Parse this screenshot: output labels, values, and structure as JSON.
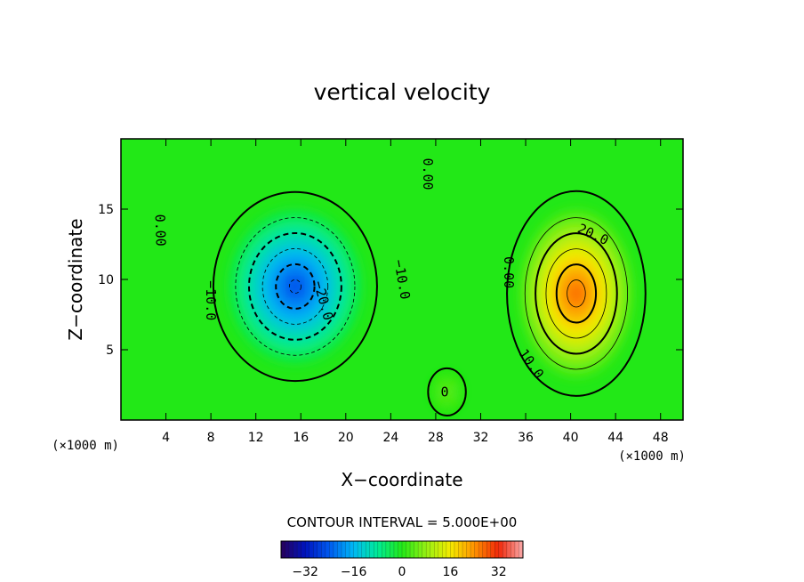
{
  "chart_data": {
    "type": "heatmap",
    "title": "vertical velocity",
    "xlabel": "X−coordinate",
    "ylabel": "Z−coordinate",
    "x_unit": "(×1000 m)",
    "z_unit": "(×1000 m)",
    "xlim": [
      0,
      50
    ],
    "ylim": [
      0,
      20
    ],
    "x_ticks": [
      4,
      8,
      12,
      16,
      20,
      24,
      28,
      32,
      36,
      40,
      44,
      48
    ],
    "x_tick_labels": [
      "4",
      "8",
      "12",
      "16",
      "20",
      "24",
      "28",
      "32",
      "36",
      "40",
      "44",
      "48"
    ],
    "y_ticks": [
      5,
      10,
      15
    ],
    "y_tick_labels": [
      "5",
      "10",
      "15"
    ],
    "contour_interval_text": "CONTOUR INTERVAL = 5.000E+00",
    "contour_interval": 5,
    "colorbar": {
      "range": [
        -40,
        40
      ],
      "ticks": [
        -32,
        -16,
        0,
        16,
        32
      ],
      "tick_labels": [
        "−32",
        "−16",
        "0",
        "16",
        "32"
      ]
    },
    "features": [
      {
        "kind": "downdraft",
        "x_center": 15.5,
        "z_center": 9.5,
        "min_value": -25,
        "x_radius": 6.5,
        "z_radius": 6
      },
      {
        "kind": "updraft",
        "x_center": 40.5,
        "z_center": 9.0,
        "max_value": 27,
        "x_radius": 5.5,
        "z_radius": 6.5
      },
      {
        "kind": "weak_updraft",
        "x_center": 29.0,
        "z_center": 2.0,
        "max_value": 4,
        "x_radius": 1.5,
        "z_radius": 1.5
      }
    ],
    "contour_labels": [
      {
        "text": "0.00",
        "x": 3.5,
        "z": 13.5,
        "angle": 88
      },
      {
        "text": "0.00",
        "x": 27.3,
        "z": 17.5,
        "angle": 90
      },
      {
        "text": "0.00",
        "x": 34.5,
        "z": 10.5,
        "angle": 90
      },
      {
        "text": "0",
        "x": 28.8,
        "z": 2.0,
        "angle": 0
      },
      {
        "text": "−10.0",
        "x": 8.0,
        "z": 8.5,
        "angle": 90
      },
      {
        "text": "−10.0",
        "x": 25.0,
        "z": 10.0,
        "angle": 80
      },
      {
        "text": "−20.0",
        "x": 18.0,
        "z": 8.5,
        "angle": 75
      },
      {
        "text": "20.0",
        "x": 42.0,
        "z": 13.2,
        "angle": 25
      },
      {
        "text": "10.0",
        "x": 36.5,
        "z": 4.0,
        "angle": 55
      }
    ]
  }
}
